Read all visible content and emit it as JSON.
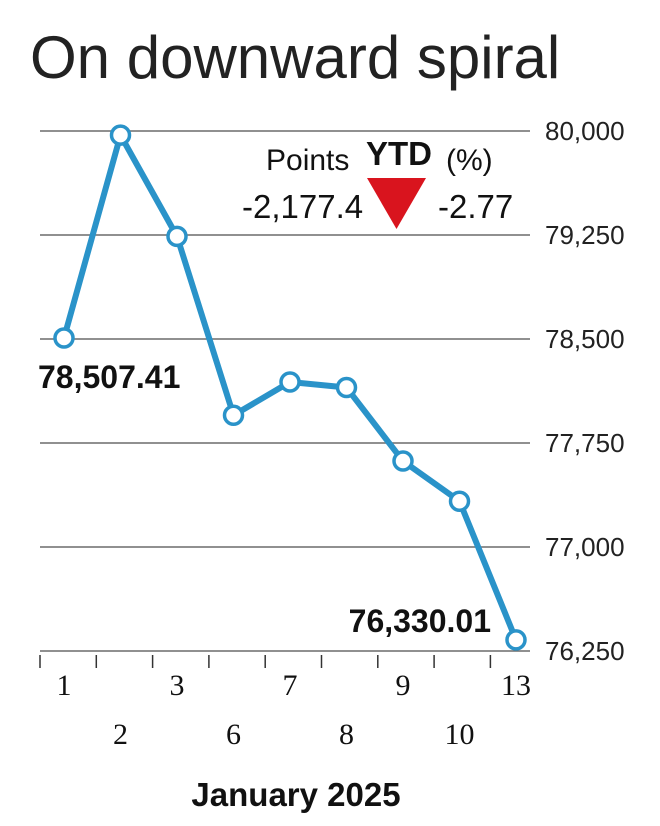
{
  "title": "On downward spiral",
  "ytd": {
    "points_label": "Points",
    "heading": "YTD",
    "percent_label": "(%)",
    "points_value": "-2,177.4",
    "percent_value": "-2.77",
    "direction_icon": "down-triangle-icon",
    "direction_color": "#d9141e"
  },
  "chart_data": {
    "type": "line",
    "title": "On downward spiral",
    "xlabel": "January 2025",
    "ylabel": "",
    "x": [
      "1",
      "2",
      "3",
      "6",
      "7",
      "8",
      "9",
      "10",
      "13"
    ],
    "series": [
      {
        "values": [
          78507.41,
          79970,
          79240,
          77950,
          78190,
          78150,
          77620,
          77330,
          76330.01
        ],
        "color": "#2a93c9"
      }
    ],
    "ylim": [
      76250,
      80000
    ],
    "yticks": [
      "80,000",
      "79,250",
      "78,500",
      "77,750",
      "77,000",
      "76,250"
    ],
    "ytick_values": [
      80000,
      79250,
      78500,
      77750,
      77000,
      76250
    ],
    "grid": true,
    "annotations": [
      {
        "index": 0,
        "text": "78,507.41"
      },
      {
        "index": 8,
        "text": "76,330.01"
      }
    ]
  }
}
